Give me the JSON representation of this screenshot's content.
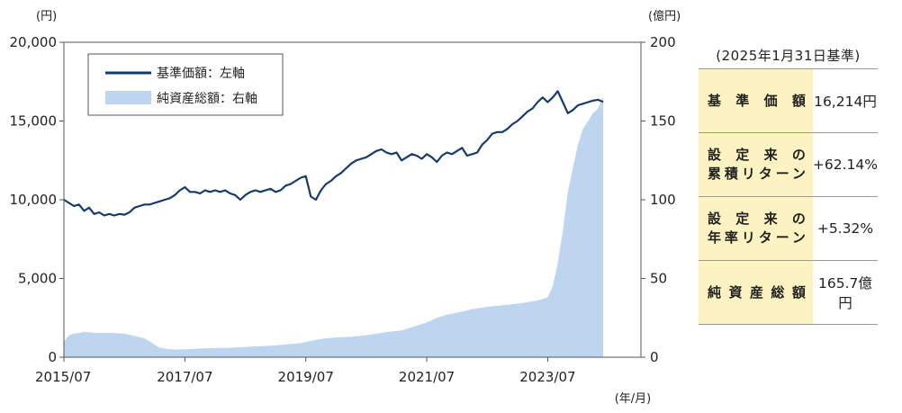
{
  "chart_data": {
    "type": "line+area",
    "left_axis_unit": "(円)",
    "right_axis_unit": "(億円)",
    "x_axis_unit": "(年/月)",
    "left_ticks": [
      "20,000",
      "15,000",
      "10,000",
      "5,000",
      "0"
    ],
    "right_ticks": [
      "200",
      "150",
      "100",
      "50",
      "0"
    ],
    "x_ticks": [
      "2015/07",
      "2017/07",
      "2019/07",
      "2021/07",
      "2023/07"
    ],
    "x_tick_pos": [
      0,
      24,
      48,
      72,
      96
    ],
    "ylim_left": [
      0,
      20000
    ],
    "ylim_right": [
      0,
      200
    ],
    "x_range": [
      0,
      114.5
    ],
    "grid": false,
    "legend_position": "top-left",
    "series": [
      {
        "name": "基準価額：左軸",
        "axis": "left",
        "style": "line",
        "color": "#143a6e",
        "points": [
          [
            0,
            10000
          ],
          [
            1,
            9800
          ],
          [
            2,
            9600
          ],
          [
            3,
            9700
          ],
          [
            4,
            9300
          ],
          [
            5,
            9500
          ],
          [
            6,
            9100
          ],
          [
            7,
            9200
          ],
          [
            8,
            9000
          ],
          [
            9,
            9100
          ],
          [
            10,
            9000
          ],
          [
            11,
            9100
          ],
          [
            12,
            9050
          ],
          [
            13,
            9200
          ],
          [
            14,
            9500
          ],
          [
            15,
            9600
          ],
          [
            16,
            9700
          ],
          [
            17,
            9700
          ],
          [
            18,
            9800
          ],
          [
            19,
            9900
          ],
          [
            20,
            10000
          ],
          [
            21,
            10100
          ],
          [
            22,
            10300
          ],
          [
            23,
            10600
          ],
          [
            24,
            10800
          ],
          [
            25,
            10500
          ],
          [
            26,
            10500
          ],
          [
            27,
            10400
          ],
          [
            28,
            10600
          ],
          [
            29,
            10500
          ],
          [
            30,
            10600
          ],
          [
            31,
            10500
          ],
          [
            32,
            10600
          ],
          [
            33,
            10400
          ],
          [
            34,
            10300
          ],
          [
            35,
            10000
          ],
          [
            36,
            10300
          ],
          [
            37,
            10500
          ],
          [
            38,
            10600
          ],
          [
            39,
            10500
          ],
          [
            40,
            10600
          ],
          [
            41,
            10700
          ],
          [
            42,
            10500
          ],
          [
            43,
            10600
          ],
          [
            44,
            10900
          ],
          [
            45,
            11000
          ],
          [
            46,
            11200
          ],
          [
            47,
            11400
          ],
          [
            48,
            11500
          ],
          [
            49,
            10200
          ],
          [
            50,
            10000
          ],
          [
            51,
            10600
          ],
          [
            52,
            11000
          ],
          [
            53,
            11200
          ],
          [
            54,
            11500
          ],
          [
            55,
            11700
          ],
          [
            56,
            12000
          ],
          [
            57,
            12300
          ],
          [
            58,
            12500
          ],
          [
            59,
            12600
          ],
          [
            60,
            12700
          ],
          [
            61,
            12900
          ],
          [
            62,
            13100
          ],
          [
            63,
            13200
          ],
          [
            64,
            13000
          ],
          [
            65,
            12900
          ],
          [
            66,
            13000
          ],
          [
            67,
            12500
          ],
          [
            68,
            12700
          ],
          [
            69,
            12900
          ],
          [
            70,
            12800
          ],
          [
            71,
            12600
          ],
          [
            72,
            12900
          ],
          [
            73,
            12700
          ],
          [
            74,
            12400
          ],
          [
            75,
            12800
          ],
          [
            76,
            13000
          ],
          [
            77,
            12900
          ],
          [
            78,
            13100
          ],
          [
            79,
            13300
          ],
          [
            80,
            12800
          ],
          [
            81,
            12900
          ],
          [
            82,
            13000
          ],
          [
            83,
            13500
          ],
          [
            84,
            13800
          ],
          [
            85,
            14200
          ],
          [
            86,
            14300
          ],
          [
            87,
            14300
          ],
          [
            88,
            14500
          ],
          [
            89,
            14800
          ],
          [
            90,
            15000
          ],
          [
            91,
            15300
          ],
          [
            92,
            15600
          ],
          [
            93,
            15800
          ],
          [
            94,
            16200
          ],
          [
            95,
            16500
          ],
          [
            96,
            16200
          ],
          [
            97,
            16500
          ],
          [
            98,
            16900
          ],
          [
            99,
            16200
          ],
          [
            100,
            15500
          ],
          [
            101,
            15700
          ],
          [
            102,
            16000
          ],
          [
            103,
            16100
          ],
          [
            104,
            16200
          ],
          [
            105,
            16300
          ],
          [
            106,
            16350
          ],
          [
            107,
            16214
          ]
        ]
      },
      {
        "name": "純資産総額：右軸",
        "axis": "right",
        "style": "area",
        "color": "#bdd5ef",
        "points": [
          [
            0,
            10
          ],
          [
            1,
            14
          ],
          [
            2,
            15
          ],
          [
            4,
            16
          ],
          [
            6,
            15.5
          ],
          [
            9,
            15.5
          ],
          [
            12,
            15
          ],
          [
            14,
            13.5
          ],
          [
            16,
            12
          ],
          [
            19,
            6
          ],
          [
            21,
            5
          ],
          [
            24,
            5
          ],
          [
            27,
            5.5
          ],
          [
            33,
            6
          ],
          [
            36,
            6.5
          ],
          [
            42,
            7.5
          ],
          [
            47,
            9
          ],
          [
            50,
            11
          ],
          [
            52,
            12
          ],
          [
            54,
            12.5
          ],
          [
            57,
            13
          ],
          [
            60,
            14
          ],
          [
            64,
            16
          ],
          [
            67,
            17
          ],
          [
            70,
            20
          ],
          [
            72,
            22
          ],
          [
            74,
            25
          ],
          [
            76,
            27
          ],
          [
            79,
            29
          ],
          [
            81,
            30.5
          ],
          [
            84,
            32
          ],
          [
            87,
            33
          ],
          [
            90,
            34
          ],
          [
            92,
            35
          ],
          [
            94,
            36
          ],
          [
            95,
            37
          ],
          [
            96,
            38
          ],
          [
            97,
            45
          ],
          [
            98,
            60
          ],
          [
            99,
            80
          ],
          [
            100,
            105
          ],
          [
            101,
            120
          ],
          [
            102,
            135
          ],
          [
            103,
            145
          ],
          [
            104,
            150
          ],
          [
            105,
            155
          ],
          [
            106,
            158
          ],
          [
            107,
            165.7
          ]
        ]
      }
    ]
  },
  "summary": {
    "basis_date": "(2025年1月31日基準)",
    "rows": [
      {
        "label_lines": [
          "基準価額"
        ],
        "value": "16,214円"
      },
      {
        "label_lines": [
          "設定来の",
          "累積リターン"
        ],
        "value": "+62.14%"
      },
      {
        "label_lines": [
          "設定来の",
          "年率リターン"
        ],
        "value": "+5.32%"
      },
      {
        "label_lines": [
          "純資産総額"
        ],
        "value": "165.7億円"
      }
    ]
  }
}
